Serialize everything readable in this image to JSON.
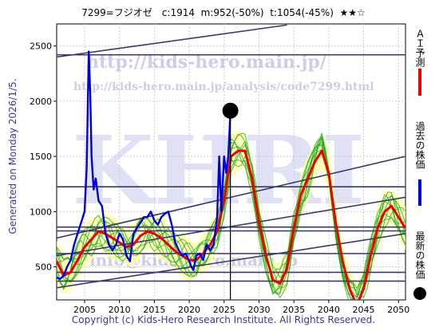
{
  "header": {
    "text": "7299=フジオゼ　c:1914  m:952(-50%)  t:1054(-45%)  ★★☆"
  },
  "footer": {
    "text": "Copyright (c) Kids-Hero Research Institute. All Rights Reserved."
  },
  "side_text": "Generated on Monday 2026/1/5.",
  "watermarks": {
    "big": "KHRI",
    "url": "http://kids-hero.main.jp/",
    "analysis_url": "http://kids-hero.main.jp/analysis/code7299.html",
    "email": "info@kids-hero.main.jp"
  },
  "colors": {
    "actual": "#0000dd",
    "forecast": "#ee0000",
    "band_fill": "#ffffa0",
    "green": "#22aa22",
    "trend": "#3a3a6a",
    "watermark": "#c0c0e0"
  },
  "chart_data": {
    "type": "line",
    "xlim": [
      2001,
      2051
    ],
    "ylim": [
      200,
      2700
    ],
    "x_ticks": [
      2005,
      2010,
      2015,
      2020,
      2025,
      2030,
      2035,
      2040,
      2045,
      2050
    ],
    "y_ticks": [
      500,
      1000,
      1500,
      2000,
      2500
    ],
    "legend": [
      {
        "name": "ＡＩ予測",
        "color": "#ee0000"
      },
      {
        "name": "過去の株価",
        "color": "#0000dd"
      },
      {
        "name": "最新の株価",
        "color": "#000000"
      }
    ],
    "latest_point": {
      "x": 2025.9,
      "y": 1914
    },
    "current_x": 2025.9,
    "series": [
      {
        "name": "過去の株価",
        "x": [
          2001,
          2001.5,
          2002,
          2002.5,
          2003,
          2003.5,
          2004,
          2004.5,
          2005,
          2005.3,
          2005.6,
          2005.8,
          2006,
          2006.3,
          2006.6,
          2007,
          2007.5,
          2008,
          2008.5,
          2009,
          2009.5,
          2010,
          2010.5,
          2011,
          2011.5,
          2012,
          2012.5,
          2013,
          2013.5,
          2014,
          2014.5,
          2015,
          2015.5,
          2016,
          2016.5,
          2017,
          2017.5,
          2018,
          2018.5,
          2019,
          2019.5,
          2020,
          2020.3,
          2020.6,
          2021,
          2021.5,
          2022,
          2022.5,
          2023,
          2023.5,
          2024,
          2024.3,
          2024.6,
          2025,
          2025.3,
          2025.6,
          2025.9
        ],
        "y": [
          400,
          390,
          420,
          500,
          560,
          700,
          800,
          900,
          1000,
          1400,
          2450,
          2100,
          1500,
          1200,
          1300,
          1100,
          1050,
          800,
          700,
          650,
          700,
          800,
          750,
          600,
          550,
          800,
          850,
          900,
          950,
          950,
          1000,
          920,
          880,
          950,
          980,
          1000,
          880,
          720,
          650,
          600,
          620,
          550,
          500,
          470,
          600,
          620,
          560,
          700,
          650,
          700,
          950,
          1500,
          1000,
          1500,
          1350,
          1500,
          1900
        ]
      },
      {
        "name": "ＡＩ予測",
        "x": [
          2001,
          2002,
          2003,
          2004,
          2005,
          2006,
          2007,
          2008,
          2009,
          2010,
          2011,
          2012,
          2013,
          2014,
          2015,
          2016,
          2017,
          2018,
          2019,
          2020,
          2021,
          2022,
          2023,
          2024,
          2025,
          2026,
          2027,
          2028,
          2029,
          2030,
          2031,
          2032,
          2033,
          2034,
          2035,
          2036,
          2037,
          2038,
          2039,
          2040,
          2041,
          2042,
          2043,
          2044,
          2045,
          2046,
          2047,
          2048,
          2049,
          2050,
          2051
        ],
        "y": [
          550,
          420,
          450,
          560,
          680,
          750,
          820,
          800,
          760,
          720,
          680,
          700,
          780,
          820,
          800,
          760,
          700,
          640,
          600,
          560,
          560,
          620,
          700,
          820,
          1100,
          1500,
          1550,
          1550,
          1300,
          900,
          600,
          380,
          350,
          480,
          850,
          1150,
          1300,
          1450,
          1550,
          1350,
          900,
          550,
          300,
          150,
          300,
          600,
          850,
          1000,
          1050,
          950,
          850
        ]
      }
    ],
    "trend_lines": [
      {
        "x": [
          2001,
          2051
        ],
        "y": [
          2420,
          2420
        ]
      },
      {
        "x": [
          2001,
          2034
        ],
        "y": [
          2400,
          2690
        ]
      },
      {
        "x": [
          2001,
          2051
        ],
        "y": [
          1225,
          1225
        ]
      },
      {
        "x": [
          2001,
          2051
        ],
        "y": [
          760,
          1500
        ]
      },
      {
        "x": [
          2001,
          2051
        ],
        "y": [
          860,
          860
        ]
      },
      {
        "x": [
          2001,
          2051
        ],
        "y": [
          825,
          825
        ]
      },
      {
        "x": [
          2001,
          2051
        ],
        "y": [
          600,
          1130
        ]
      },
      {
        "x": [
          2001,
          2051
        ],
        "y": [
          310,
          800
        ]
      },
      {
        "x": [
          2001,
          2051
        ],
        "y": [
          620,
          620
        ]
      },
      {
        "x": [
          2001,
          2051
        ],
        "y": [
          450,
          450
        ]
      },
      {
        "x": [
          2001,
          2051
        ],
        "y": [
          370,
          370
        ]
      }
    ]
  }
}
